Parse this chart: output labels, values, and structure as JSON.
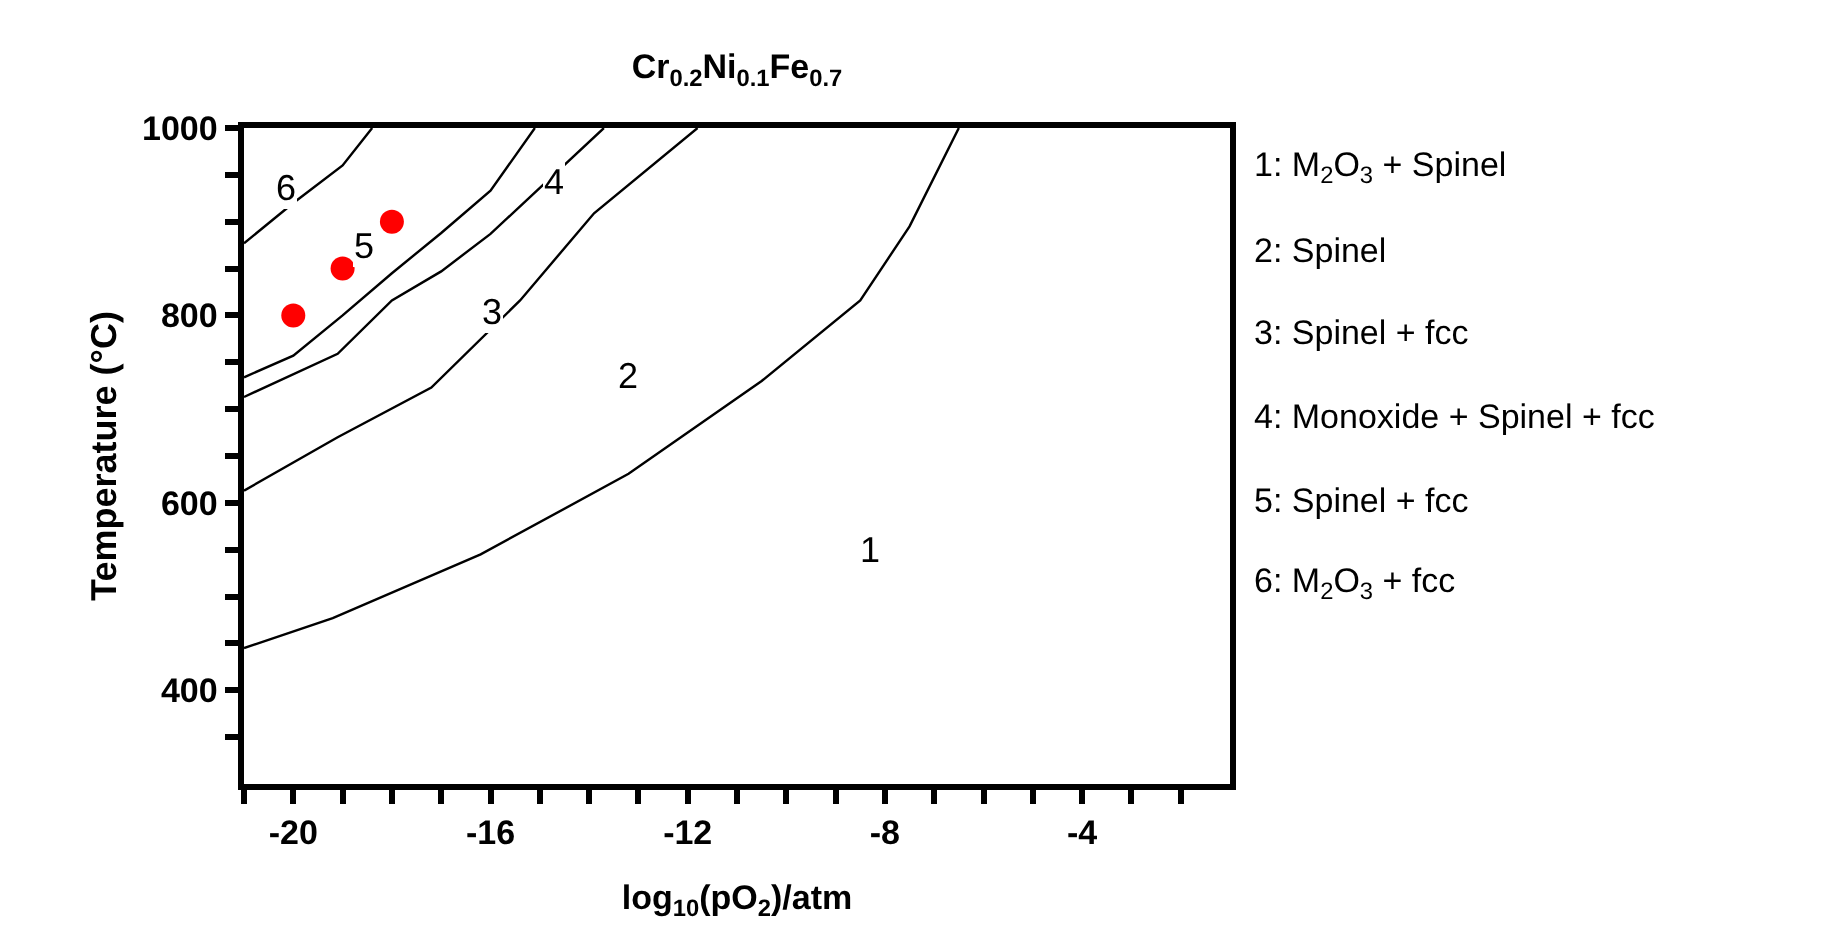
{
  "chart_data": {
    "type": "line",
    "title": "Cr$_{0.2}$Ni$_{0.1}$Fe$_{0.7}$",
    "xlabel": "log$_{10}$(pO$_{2}$)/atm",
    "ylabel": "Temperature (°C)",
    "xlim": [
      -21,
      -1
    ],
    "ylim": [
      300,
      1000
    ],
    "xticks": [
      {
        "value": -21,
        "label": null
      },
      -20,
      {
        "value": -19,
        "label": null
      },
      {
        "value": -18,
        "label": null
      },
      {
        "value": -17,
        "label": null
      },
      -16,
      {
        "value": -15,
        "label": null
      },
      {
        "value": -14,
        "label": null
      },
      {
        "value": -13,
        "label": null
      },
      -12,
      {
        "value": -11,
        "label": null
      },
      {
        "value": -10,
        "label": null
      },
      {
        "value": -9,
        "label": null
      },
      -8,
      {
        "value": -7,
        "label": null
      },
      {
        "value": -6,
        "label": null
      },
      {
        "value": -5,
        "label": null
      },
      -4,
      {
        "value": -3,
        "label": null
      },
      {
        "value": -2,
        "label": null
      }
    ],
    "yticks": [
      {
        "value": 350,
        "label": null
      },
      400,
      {
        "value": 450,
        "label": null
      },
      {
        "value": 500,
        "label": null
      },
      {
        "value": 550,
        "label": null
      },
      600,
      {
        "value": 650,
        "label": null
      },
      {
        "value": 700,
        "label": null
      },
      {
        "value": 750,
        "label": null
      },
      800,
      {
        "value": 850,
        "label": null
      },
      {
        "value": 900,
        "label": null
      },
      {
        "value": 950,
        "label": null
      },
      1000
    ],
    "line_style": "solid",
    "marker": "none",
    "series": [
      {
        "color": "#000000",
        "x": [
          -21,
          -20,
          -19,
          -18.4
        ],
        "values": [
          877,
          920,
          960,
          1000
        ]
      },
      {
        "color": "#000000",
        "x": [
          -21,
          -20,
          -19,
          -18,
          -17,
          -16,
          -15.1
        ],
        "values": [
          734,
          757,
          800,
          845,
          888,
          933,
          1000
        ]
      },
      {
        "color": "#000000",
        "x": [
          -21,
          -19.1,
          -18,
          -17,
          -16,
          -13.7
        ],
        "values": [
          713,
          759,
          816,
          847,
          887,
          1000
        ]
      },
      {
        "color": "#000000",
        "x": [
          -21,
          -19.1,
          -17.2,
          -15.4,
          -13.9,
          -11.8
        ],
        "values": [
          613,
          670,
          723,
          816,
          909,
          1000
        ]
      },
      {
        "color": "#000000",
        "x": [
          -21,
          -19.2,
          -16.2,
          -13.2,
          -10.5,
          -8.5,
          -7.5,
          -6.5
        ],
        "values": [
          445,
          477,
          545,
          631,
          730,
          816,
          895,
          1000
        ]
      },
      {
        "type": "scatter",
        "color": "#ff0000",
        "marker": "circle",
        "x": [
          -20,
          -19,
          -18
        ],
        "values": [
          800,
          850,
          900
        ]
      }
    ],
    "annotations": [
      "6",
      "5",
      "4",
      "3",
      "2",
      "1",
      "1: M$_{2}$O$_{3}$ + Spinel",
      "2: Spinel",
      "3: Spinel + fcc",
      "4: Monoxide + Spinel + fcc",
      "5: Spinel + fcc",
      "6: M$_{2}$O$_{3}$ + fcc"
    ]
  }
}
